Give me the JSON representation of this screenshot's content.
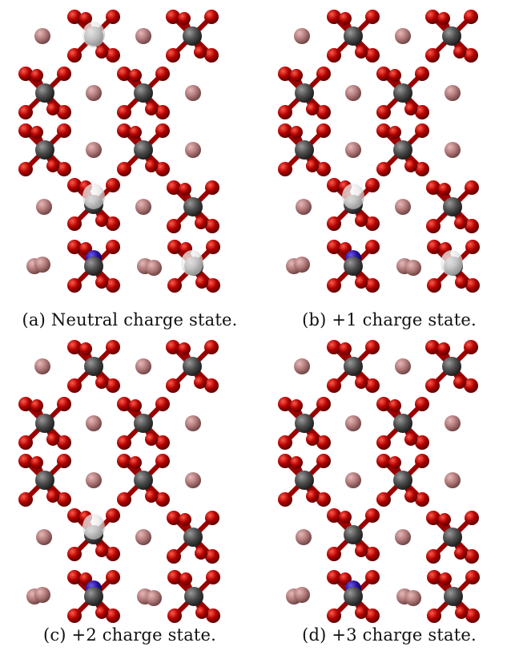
{
  "panels": [
    {
      "id": "a",
      "caption": "(a) Neutral charge state."
    },
    {
      "id": "b",
      "caption": "(b) +1 charge state."
    },
    {
      "id": "c",
      "caption": "(c) +2 charge state."
    },
    {
      "id": "d",
      "caption": "(d) +3 charge state."
    }
  ],
  "colors": {
    "oxygen": "#b00000",
    "carbon": "#4a4a4a",
    "metal": "#b07878",
    "dopant": "#2a10a0",
    "hydrogen": "#e8e8e8",
    "background": "#ffffff"
  }
}
